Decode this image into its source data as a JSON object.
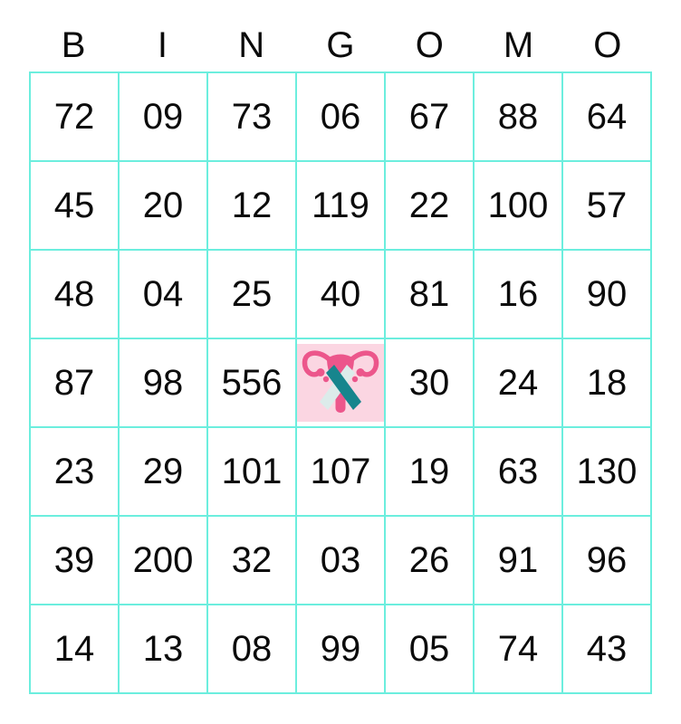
{
  "header": {
    "letters": [
      "B",
      "I",
      "N",
      "G",
      "O",
      "M",
      "O"
    ]
  },
  "grid": {
    "rows": [
      [
        "72",
        "09",
        "73",
        "06",
        "67",
        "88",
        "64"
      ],
      [
        "45",
        "20",
        "12",
        "119",
        "22",
        "100",
        "57"
      ],
      [
        "48",
        "04",
        "25",
        "40",
        "81",
        "16",
        "90"
      ],
      [
        "87",
        "98",
        "556",
        null,
        "30",
        "24",
        "18"
      ],
      [
        "23",
        "29",
        "101",
        "107",
        "19",
        "63",
        "130"
      ],
      [
        "39",
        "200",
        "32",
        "03",
        "26",
        "91",
        "96"
      ],
      [
        "14",
        "13",
        "08",
        "99",
        "05",
        "74",
        "43"
      ]
    ],
    "free_cell": {
      "row_index": 3,
      "col_index": 3,
      "icon": "uterus-awareness-ribbon-icon"
    }
  },
  "colors": {
    "grid_line": "#6ceede",
    "number_text": "#0b0b0b",
    "icon_background": "#fbd6e2",
    "uterus_pink": "#ec568b",
    "ribbon_teal": "#17858d",
    "ribbon_white": "#dcebea"
  }
}
